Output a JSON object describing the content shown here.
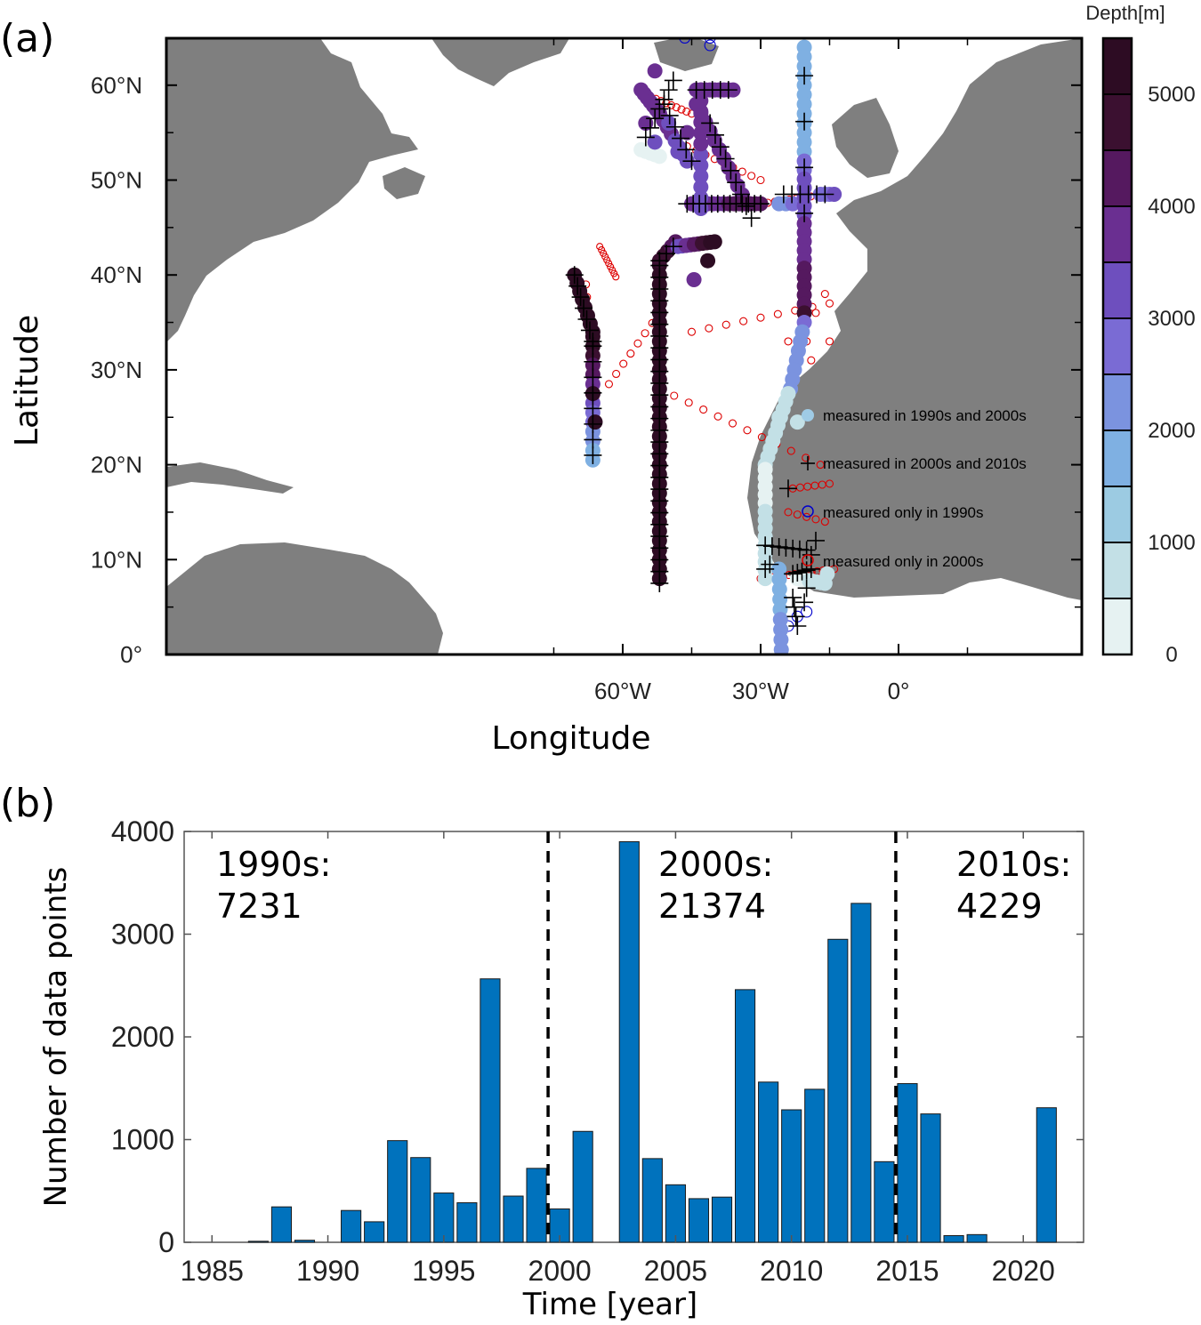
{
  "panel_a": {
    "label": "(a)",
    "xlabel": "Longitude",
    "ylabel": "Latitude",
    "lon_ticks": [
      {
        "lon": -60,
        "label": "60°W"
      },
      {
        "lon": -30,
        "label": "30°W"
      },
      {
        "lon": 0,
        "label": "0°"
      }
    ],
    "lat_ticks": [
      {
        "lat": 0,
        "label": "0°"
      },
      {
        "lat": 10,
        "label": "10°N"
      },
      {
        "lat": 20,
        "label": "20°N"
      },
      {
        "lat": 30,
        "label": "30°N"
      },
      {
        "lat": 40,
        "label": "40°N"
      },
      {
        "lat": 50,
        "label": "50°N"
      },
      {
        "lat": 60,
        "label": "60°N"
      }
    ],
    "colorbar": {
      "title": "Depth[m]",
      "range": [
        0,
        5500
      ],
      "tick_labels": [
        "0",
        "1000",
        "2000",
        "3000",
        "4000",
        "5000"
      ],
      "tick_values": [
        0,
        1000,
        2000,
        3000,
        4000,
        5000
      ],
      "colors": [
        "#e6f2f2",
        "#c3e0e6",
        "#9ccbe2",
        "#7fb0e2",
        "#7b93df",
        "#7a6bd4",
        "#6e4fbe",
        "#6a2f91",
        "#55195f",
        "#3b1030",
        "#2d0c23"
      ]
    },
    "legend": [
      {
        "marker": "filled-circle",
        "color": "#9fcbe6",
        "text": "measured in 1990s and 2000s"
      },
      {
        "marker": "plus",
        "color": "#000000",
        "text": "measured in 2000s and 2010s"
      },
      {
        "marker": "open-circle",
        "color": "#0000cc",
        "text": "measured only in 1990s"
      },
      {
        "marker": "open-circle",
        "color": "#dd0000",
        "text": "measured only in 2000s"
      }
    ]
  },
  "chart_data": {
    "type": "bar",
    "panel_label": "(b)",
    "xlabel": "Time [year]",
    "ylabel": "Number of data points",
    "xlim": [
      1983.8,
      2022.6
    ],
    "ylim": [
      0,
      4000
    ],
    "x_ticks": [
      1985,
      1990,
      1995,
      2000,
      2005,
      2010,
      2015,
      2020
    ],
    "y_ticks": [
      0,
      1000,
      2000,
      3000,
      4000
    ],
    "bar_color": "#0072bd",
    "years": [
      1985,
      1986,
      1987,
      1988,
      1989,
      1990,
      1991,
      1992,
      1993,
      1994,
      1995,
      1996,
      1997,
      1998,
      1999,
      2000,
      2001,
      2002,
      2003,
      2004,
      2005,
      2006,
      2007,
      2008,
      2009,
      2010,
      2011,
      2012,
      2013,
      2014,
      2015,
      2016,
      2017,
      2018,
      2019,
      2020,
      2021
    ],
    "values": [
      0,
      0,
      10,
      345,
      20,
      0,
      310,
      200,
      990,
      825,
      480,
      385,
      2565,
      450,
      720,
      325,
      1080,
      0,
      3900,
      815,
      560,
      425,
      440,
      2460,
      1560,
      1290,
      1490,
      2950,
      3300,
      785,
      1545,
      1250,
      65,
      75,
      0,
      0,
      1310
    ],
    "dividers": [
      1999.5,
      2014.5
    ],
    "annotations": [
      {
        "line1": "1990s:",
        "line2": "7231"
      },
      {
        "line1": "2000s:",
        "line2": "21374"
      },
      {
        "line1": "2010s:",
        "line2": "4229"
      }
    ]
  }
}
